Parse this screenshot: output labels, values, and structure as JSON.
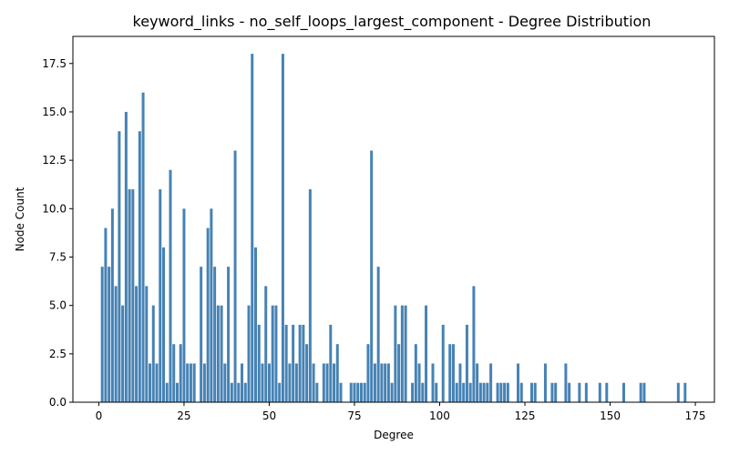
{
  "chart_data": {
    "type": "bar",
    "title": "keyword_links - no_self_loops_largest_component - Degree Distribution",
    "xlabel": "Degree",
    "ylabel": "Node Count",
    "xlim": [
      -7.6,
      180.6
    ],
    "ylim": [
      0,
      18.9
    ],
    "xticks": [
      0,
      25,
      50,
      75,
      100,
      125,
      150,
      175
    ],
    "yticks": [
      0.0,
      2.5,
      5.0,
      7.5,
      10.0,
      12.5,
      15.0,
      17.5
    ],
    "ytick_labels": [
      "0.0",
      "2.5",
      "5.0",
      "7.5",
      "10.0",
      "12.5",
      "15.0",
      "17.5"
    ],
    "grid": false,
    "color": "#4682b4",
    "bars": [
      {
        "x": 1,
        "y": 7
      },
      {
        "x": 2,
        "y": 9
      },
      {
        "x": 3,
        "y": 7
      },
      {
        "x": 4,
        "y": 10
      },
      {
        "x": 5,
        "y": 6
      },
      {
        "x": 6,
        "y": 14
      },
      {
        "x": 7,
        "y": 5
      },
      {
        "x": 8,
        "y": 15
      },
      {
        "x": 9,
        "y": 11
      },
      {
        "x": 10,
        "y": 11
      },
      {
        "x": 11,
        "y": 6
      },
      {
        "x": 12,
        "y": 14
      },
      {
        "x": 13,
        "y": 16
      },
      {
        "x": 14,
        "y": 6
      },
      {
        "x": 15,
        "y": 2
      },
      {
        "x": 16,
        "y": 5
      },
      {
        "x": 17,
        "y": 2
      },
      {
        "x": 18,
        "y": 11
      },
      {
        "x": 19,
        "y": 8
      },
      {
        "x": 20,
        "y": 1
      },
      {
        "x": 21,
        "y": 12
      },
      {
        "x": 22,
        "y": 3
      },
      {
        "x": 23,
        "y": 1
      },
      {
        "x": 24,
        "y": 3
      },
      {
        "x": 25,
        "y": 10
      },
      {
        "x": 26,
        "y": 2
      },
      {
        "x": 27,
        "y": 2
      },
      {
        "x": 28,
        "y": 2
      },
      {
        "x": 30,
        "y": 7
      },
      {
        "x": 31,
        "y": 2
      },
      {
        "x": 32,
        "y": 9
      },
      {
        "x": 33,
        "y": 10
      },
      {
        "x": 34,
        "y": 7
      },
      {
        "x": 35,
        "y": 5
      },
      {
        "x": 36,
        "y": 5
      },
      {
        "x": 37,
        "y": 2
      },
      {
        "x": 38,
        "y": 7
      },
      {
        "x": 39,
        "y": 1
      },
      {
        "x": 40,
        "y": 13
      },
      {
        "x": 41,
        "y": 1
      },
      {
        "x": 42,
        "y": 2
      },
      {
        "x": 43,
        "y": 1
      },
      {
        "x": 44,
        "y": 5
      },
      {
        "x": 45,
        "y": 18
      },
      {
        "x": 46,
        "y": 8
      },
      {
        "x": 47,
        "y": 4
      },
      {
        "x": 48,
        "y": 2
      },
      {
        "x": 49,
        "y": 6
      },
      {
        "x": 50,
        "y": 2
      },
      {
        "x": 51,
        "y": 5
      },
      {
        "x": 52,
        "y": 5
      },
      {
        "x": 53,
        "y": 1
      },
      {
        "x": 54,
        "y": 18
      },
      {
        "x": 55,
        "y": 4
      },
      {
        "x": 56,
        "y": 2
      },
      {
        "x": 57,
        "y": 4
      },
      {
        "x": 58,
        "y": 2
      },
      {
        "x": 59,
        "y": 4
      },
      {
        "x": 60,
        "y": 4
      },
      {
        "x": 61,
        "y": 3
      },
      {
        "x": 62,
        "y": 11
      },
      {
        "x": 63,
        "y": 2
      },
      {
        "x": 64,
        "y": 1
      },
      {
        "x": 66,
        "y": 2
      },
      {
        "x": 67,
        "y": 2
      },
      {
        "x": 68,
        "y": 4
      },
      {
        "x": 69,
        "y": 2
      },
      {
        "x": 70,
        "y": 3
      },
      {
        "x": 71,
        "y": 1
      },
      {
        "x": 74,
        "y": 1
      },
      {
        "x": 75,
        "y": 1
      },
      {
        "x": 76,
        "y": 1
      },
      {
        "x": 77,
        "y": 1
      },
      {
        "x": 78,
        "y": 1
      },
      {
        "x": 79,
        "y": 3
      },
      {
        "x": 80,
        "y": 13
      },
      {
        "x": 81,
        "y": 2
      },
      {
        "x": 82,
        "y": 7
      },
      {
        "x": 83,
        "y": 2
      },
      {
        "x": 84,
        "y": 2
      },
      {
        "x": 85,
        "y": 2
      },
      {
        "x": 86,
        "y": 1
      },
      {
        "x": 87,
        "y": 5
      },
      {
        "x": 88,
        "y": 3
      },
      {
        "x": 89,
        "y": 5
      },
      {
        "x": 90,
        "y": 5
      },
      {
        "x": 92,
        "y": 1
      },
      {
        "x": 93,
        "y": 3
      },
      {
        "x": 94,
        "y": 2
      },
      {
        "x": 95,
        "y": 1
      },
      {
        "x": 96,
        "y": 5
      },
      {
        "x": 98,
        "y": 2
      },
      {
        "x": 99,
        "y": 1
      },
      {
        "x": 101,
        "y": 4
      },
      {
        "x": 103,
        "y": 3
      },
      {
        "x": 104,
        "y": 3
      },
      {
        "x": 105,
        "y": 1
      },
      {
        "x": 106,
        "y": 2
      },
      {
        "x": 107,
        "y": 1
      },
      {
        "x": 108,
        "y": 4
      },
      {
        "x": 109,
        "y": 1
      },
      {
        "x": 110,
        "y": 6
      },
      {
        "x": 111,
        "y": 2
      },
      {
        "x": 112,
        "y": 1
      },
      {
        "x": 113,
        "y": 1
      },
      {
        "x": 114,
        "y": 1
      },
      {
        "x": 115,
        "y": 2
      },
      {
        "x": 117,
        "y": 1
      },
      {
        "x": 118,
        "y": 1
      },
      {
        "x": 119,
        "y": 1
      },
      {
        "x": 120,
        "y": 1
      },
      {
        "x": 123,
        "y": 2
      },
      {
        "x": 124,
        "y": 1
      },
      {
        "x": 127,
        "y": 1
      },
      {
        "x": 128,
        "y": 1
      },
      {
        "x": 131,
        "y": 2
      },
      {
        "x": 133,
        "y": 1
      },
      {
        "x": 134,
        "y": 1
      },
      {
        "x": 137,
        "y": 2
      },
      {
        "x": 138,
        "y": 1
      },
      {
        "x": 141,
        "y": 1
      },
      {
        "x": 143,
        "y": 1
      },
      {
        "x": 147,
        "y": 1
      },
      {
        "x": 149,
        "y": 1
      },
      {
        "x": 154,
        "y": 1
      },
      {
        "x": 159,
        "y": 1
      },
      {
        "x": 160,
        "y": 1
      },
      {
        "x": 170,
        "y": 1
      },
      {
        "x": 172,
        "y": 1
      }
    ]
  }
}
